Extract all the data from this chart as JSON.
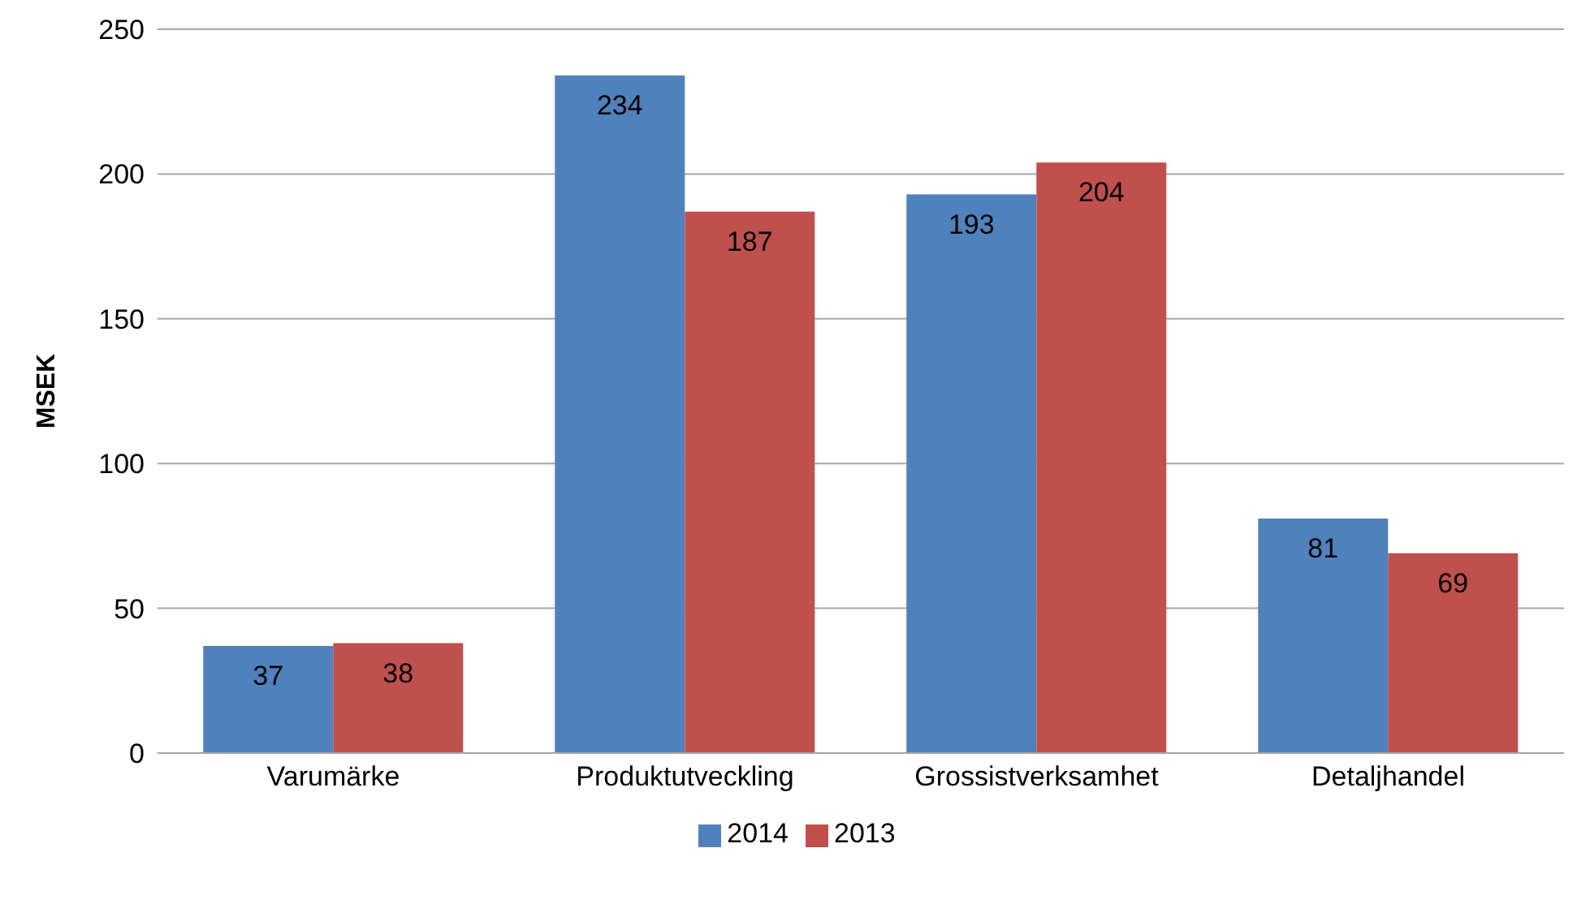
{
  "chart_data": {
    "type": "bar",
    "ylabel": "MSEK",
    "categories": [
      "Varumärke",
      "Produktutveckling",
      "Grossistverksamhet",
      "Detaljhandel"
    ],
    "series": [
      {
        "name": "2014",
        "color": "#4f81bd",
        "values": [
          37,
          234,
          193,
          81
        ]
      },
      {
        "name": "2013",
        "color": "#c0504d",
        "values": [
          38,
          187,
          204,
          69
        ]
      }
    ],
    "ylim": [
      0,
      250
    ],
    "yticks": [
      0,
      50,
      100,
      150,
      200,
      250
    ],
    "grid": "y",
    "legend": "bottom",
    "data_labels": true
  }
}
